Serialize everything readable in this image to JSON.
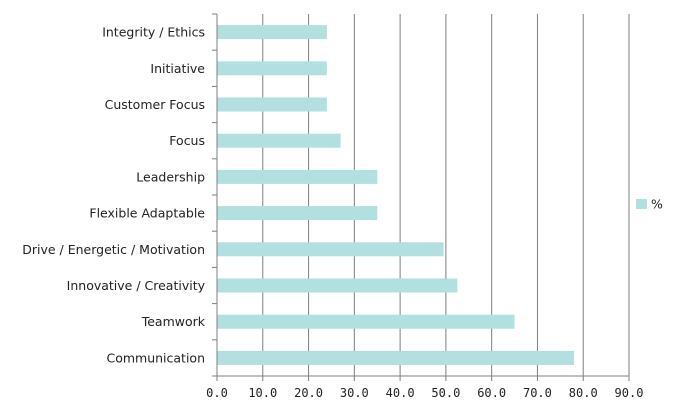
{
  "chart_data": {
    "type": "bar",
    "orientation": "horizontal",
    "categories": [
      "Communication",
      "Teamwork",
      "Innovative / Creativity",
      "Drive / Energetic / Motivation",
      "Flexible Adaptable",
      "Leadership",
      "Focus",
      "Customer Focus",
      "Initiative",
      "Integrity / Ethics"
    ],
    "series": [
      {
        "name": "%",
        "color": "#b2dfdf",
        "values": [
          78,
          65,
          52.5,
          49.5,
          35,
          35,
          27,
          24,
          24,
          24
        ]
      }
    ],
    "xlim": [
      0,
      90
    ],
    "xticks": [
      "0.0",
      "10.0",
      "20.0",
      "30.0",
      "40.0",
      "50.0",
      "60.0",
      "70.0",
      "80.0",
      "90.0"
    ],
    "xtick_values": [
      0,
      10,
      20,
      30,
      40,
      50,
      60,
      70,
      80,
      90
    ],
    "grid": "vertical",
    "legend": "right",
    "title": "",
    "xlabel": "",
    "ylabel": ""
  }
}
